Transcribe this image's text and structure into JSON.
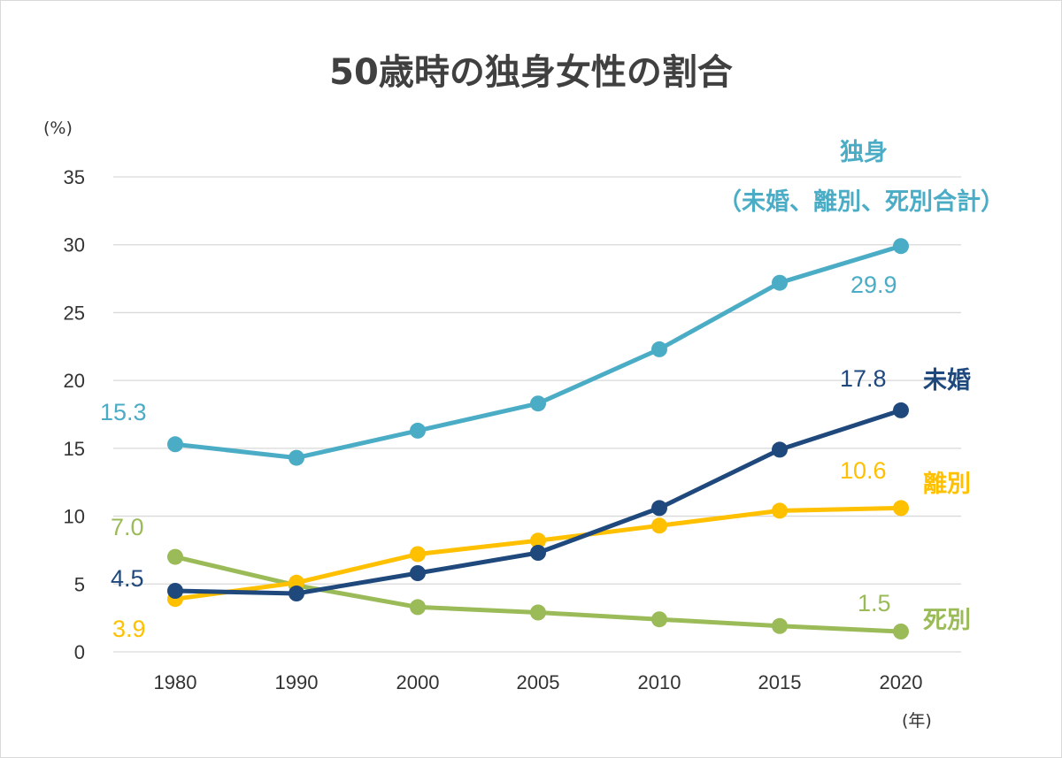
{
  "chart_data": {
    "type": "line",
    "title": "50歳時の独身女性の割合",
    "ylabel": "(%)",
    "xlabel": "(年)",
    "ylim": [
      0,
      35
    ],
    "yticks": [
      "0",
      "5",
      "10",
      "15",
      "20",
      "25",
      "30",
      "35"
    ],
    "categories": [
      "1980",
      "1990",
      "2000",
      "2005",
      "2010",
      "2015",
      "2020"
    ],
    "grid": true,
    "series": [
      {
        "key": "single",
        "name": "独身",
        "name_sub": "（未婚、離別、死別合計）",
        "color": "#4bacc6",
        "values": [
          15.3,
          14.3,
          16.3,
          18.3,
          22.3,
          27.2,
          29.9
        ],
        "start_label": "15.3",
        "end_label": "29.9"
      },
      {
        "key": "unmarried",
        "name": "未婚",
        "color": "#1f497d",
        "values": [
          4.5,
          4.3,
          5.8,
          7.3,
          10.6,
          14.9,
          17.8
        ],
        "start_label": "4.5",
        "end_label": "17.8"
      },
      {
        "key": "divorced",
        "name": "離別",
        "color": "#ffc000",
        "values": [
          3.9,
          5.1,
          7.2,
          8.2,
          9.3,
          10.4,
          10.6
        ],
        "start_label": "3.9",
        "end_label": "10.6"
      },
      {
        "key": "widowed",
        "name": "死別",
        "color": "#9bbb59",
        "values": [
          7.0,
          4.9,
          3.3,
          2.9,
          2.4,
          1.9,
          1.5
        ],
        "start_label": "7.0",
        "end_label": "1.5"
      }
    ]
  }
}
